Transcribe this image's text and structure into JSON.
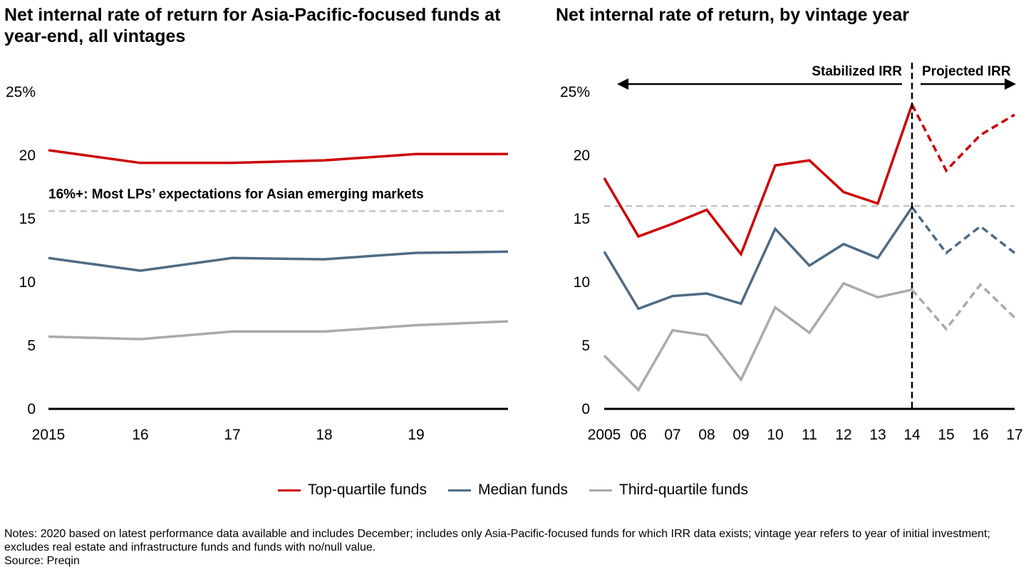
{
  "colors": {
    "top": "#cc0000",
    "median": "#4f6b84",
    "third": "#aaaaaa",
    "benchmark": "#c4c4c4",
    "axis": "#000000"
  },
  "legend": [
    {
      "label": "Top-quartile funds",
      "key": "top"
    },
    {
      "label": "Median funds",
      "key": "median"
    },
    {
      "label": "Third-quartile funds",
      "key": "third"
    }
  ],
  "notes": "Notes: 2020 based on latest performance data available and includes December; includes only Asia-Pacific-focused funds for which IRR data exists; vintage year refers to year of initial investment; excludes real estate and infrastructure funds and funds with no/null value.",
  "source": "Source: Preqin",
  "chart_data": [
    {
      "type": "line",
      "title": "Net internal rate of return for Asia-Pacific-focused funds at year-end, all vintages",
      "x": [
        2015,
        2016,
        2017,
        2018,
        2019,
        2020
      ],
      "xtick_labels": [
        "2015",
        "16",
        "17",
        "18",
        "19",
        ""
      ],
      "ylim": [
        0,
        25
      ],
      "yticks": [
        0,
        5,
        10,
        15,
        20,
        25
      ],
      "ytick_labels": [
        "0",
        "5",
        "10",
        "15",
        "20",
        "25%"
      ],
      "series": [
        {
          "name": "Top-quartile funds",
          "key": "top",
          "values": [
            20.4,
            19.4,
            19.4,
            19.6,
            20.1,
            20.1
          ]
        },
        {
          "name": "Median funds",
          "key": "median",
          "values": [
            11.9,
            10.9,
            11.9,
            11.8,
            12.3,
            12.4
          ]
        },
        {
          "name": "Third-quartile funds",
          "key": "third",
          "values": [
            5.7,
            5.5,
            6.1,
            6.1,
            6.6,
            6.9
          ]
        }
      ],
      "reference_line": {
        "value": 15.6,
        "label": "16%+: Most LPs’ expectations for Asian emerging markets"
      }
    },
    {
      "type": "line",
      "title": "Net internal rate of return, by vintage year",
      "x": [
        2005,
        2006,
        2007,
        2008,
        2009,
        2010,
        2011,
        2012,
        2013,
        2014,
        2015,
        2016,
        2017
      ],
      "xtick_labels": [
        "2005",
        "06",
        "07",
        "08",
        "09",
        "10",
        "11",
        "12",
        "13",
        "14",
        "15",
        "16",
        "17"
      ],
      "ylim": [
        0,
        25
      ],
      "yticks": [
        0,
        5,
        10,
        15,
        20,
        25
      ],
      "ytick_labels": [
        "0",
        "5",
        "10",
        "15",
        "20",
        "25%"
      ],
      "projected_from": 2014,
      "series": [
        {
          "name": "Top-quartile funds",
          "key": "top",
          "values": [
            18.2,
            13.6,
            14.6,
            15.7,
            12.2,
            19.2,
            19.6,
            17.1,
            16.2,
            24.0,
            18.8,
            21.6,
            23.2
          ]
        },
        {
          "name": "Median funds",
          "key": "median",
          "values": [
            12.4,
            7.9,
            8.9,
            9.1,
            8.3,
            14.2,
            11.3,
            13.0,
            11.9,
            15.9,
            12.3,
            14.4,
            12.3
          ]
        },
        {
          "name": "Third-quartile funds",
          "key": "third",
          "values": [
            4.2,
            1.5,
            6.2,
            5.8,
            2.3,
            8.0,
            6.0,
            9.9,
            8.8,
            9.4,
            6.3,
            9.8,
            7.2
          ]
        }
      ],
      "reference_line": {
        "value": 16.0
      },
      "annotations": {
        "stabilized": "Stabilized IRR",
        "projected": "Projected IRR"
      }
    }
  ]
}
